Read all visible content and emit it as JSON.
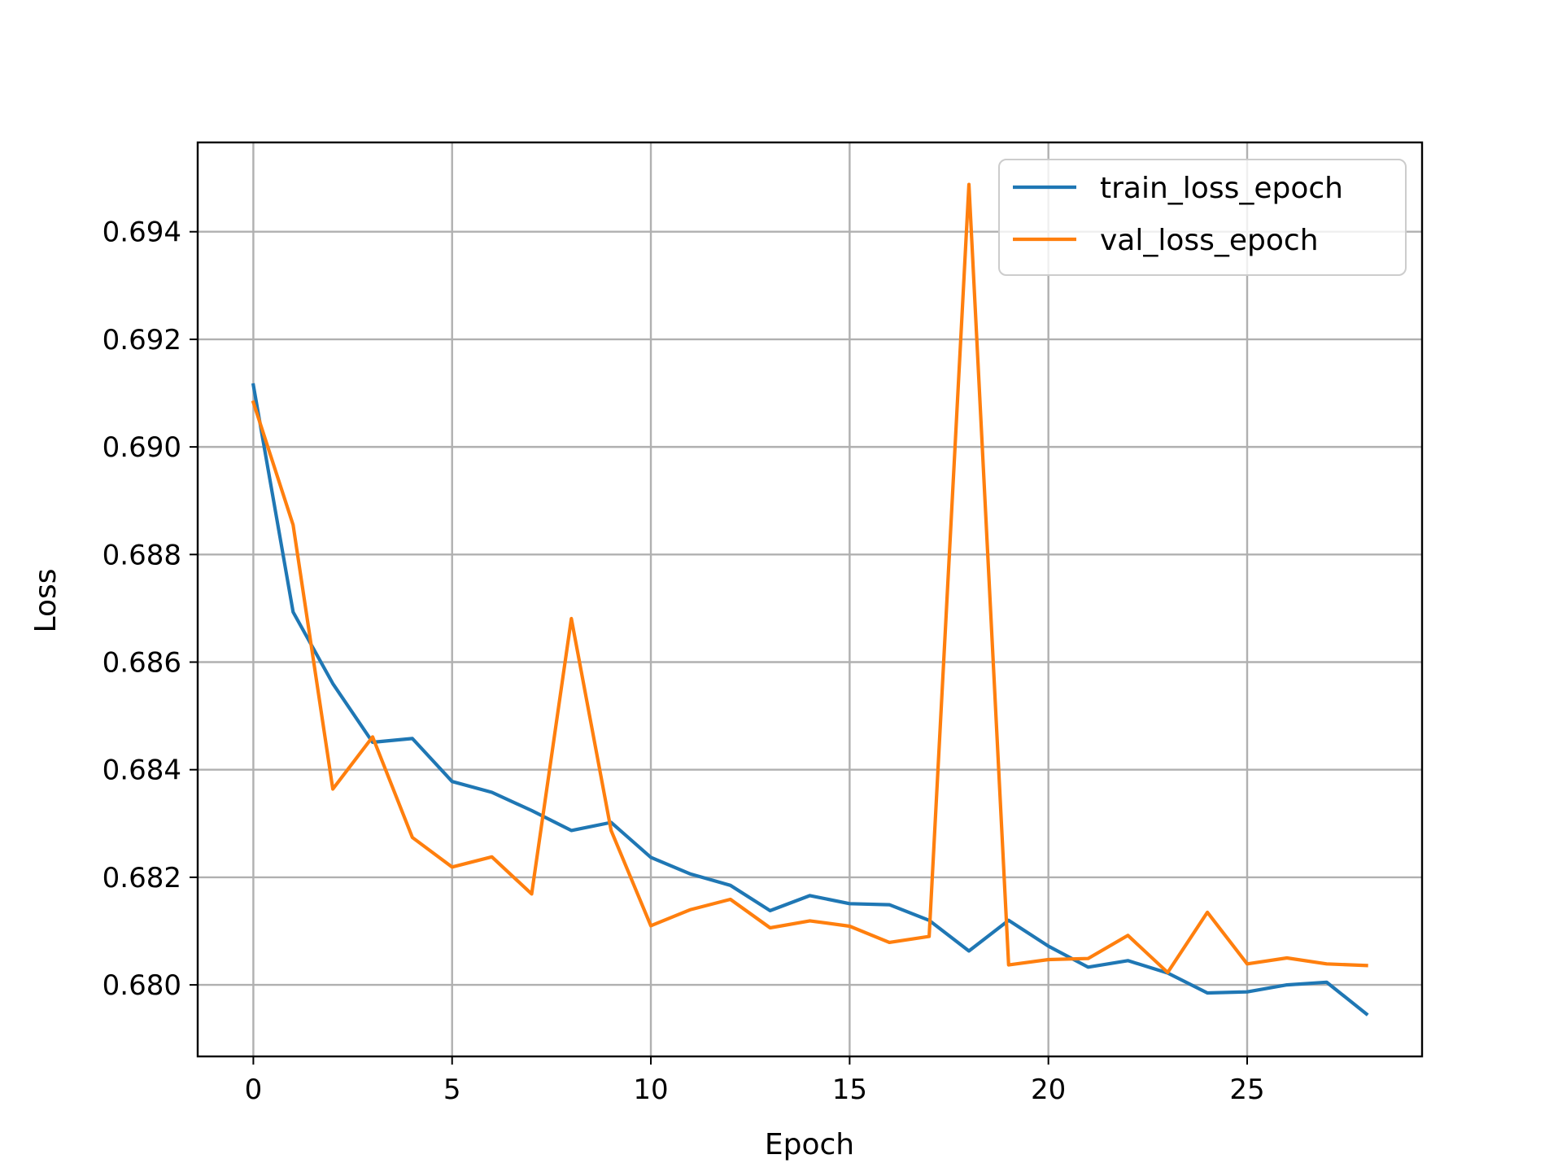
{
  "chart_data": {
    "type": "line",
    "xlabel": "Epoch",
    "ylabel": "Loss",
    "xlim": [
      -1.4,
      29.4
    ],
    "ylim": [
      0.67867,
      0.69566
    ],
    "xticks": [
      0,
      5,
      10,
      15,
      20,
      25
    ],
    "yticks": [
      0.68,
      0.682,
      0.684,
      0.686,
      0.688,
      0.69,
      0.692,
      0.694
    ],
    "ytick_labels": [
      "0.680",
      "0.682",
      "0.684",
      "0.686",
      "0.688",
      "0.690",
      "0.692",
      "0.694"
    ],
    "grid": true,
    "legend_position": "top-right",
    "x": [
      0,
      1,
      2,
      3,
      4,
      5,
      6,
      7,
      8,
      9,
      10,
      11,
      12,
      13,
      14,
      15,
      16,
      17,
      18,
      19,
      20,
      21,
      22,
      23,
      24,
      25,
      26,
      27,
      28
    ],
    "series": [
      {
        "name": "train_loss_epoch",
        "color": "#1f77b4",
        "values": [
          0.69115,
          0.68693,
          0.6856,
          0.68451,
          0.68458,
          0.68378,
          0.68358,
          0.68324,
          0.68287,
          0.68302,
          0.68237,
          0.68206,
          0.68185,
          0.68138,
          0.68166,
          0.68151,
          0.68149,
          0.6812,
          0.68063,
          0.6812,
          0.68072,
          0.68033,
          0.68045,
          0.68022,
          0.67985,
          0.67987,
          0.68,
          0.68005,
          0.67946
        ]
      },
      {
        "name": "val_loss_epoch",
        "color": "#ff7f0e",
        "values": [
          0.69083,
          0.68855,
          0.68364,
          0.68461,
          0.68274,
          0.68219,
          0.68238,
          0.68169,
          0.68681,
          0.68287,
          0.6811,
          0.6814,
          0.68159,
          0.68106,
          0.68119,
          0.68109,
          0.68079,
          0.6809,
          0.69488,
          0.68037,
          0.68047,
          0.68049,
          0.68092,
          0.68023,
          0.68135,
          0.68039,
          0.6805,
          0.68039,
          0.68036
        ]
      }
    ]
  }
}
